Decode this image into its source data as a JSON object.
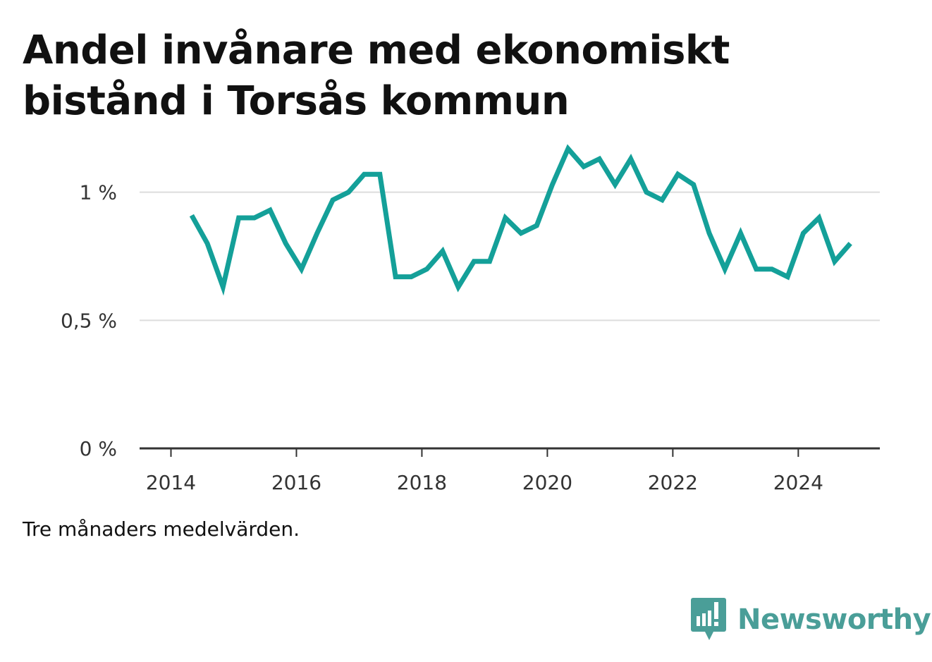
{
  "title": "Andel invånare med ekonomiskt bistånd i Torsås kommun",
  "note": "Tre månaders medelvärden.",
  "brand": {
    "name": "Newsworthy",
    "icon": "newsworthy-logo-icon",
    "color": "#4a9e98"
  },
  "chart_data": {
    "type": "line",
    "line_color": "#14a099",
    "grid": true,
    "xlim": [
      2013.5,
      2025.3
    ],
    "ylim": [
      0,
      1.2
    ],
    "x_ticks": [
      2014,
      2016,
      2018,
      2020,
      2022,
      2024
    ],
    "x_tick_labels": [
      "2014",
      "2016",
      "2018",
      "2020",
      "2022",
      "2024"
    ],
    "y_ticks": [
      0,
      0.5,
      1
    ],
    "y_tick_labels": [
      "0 %",
      "0,5 %",
      "1 %"
    ],
    "series": [
      {
        "x": [
          2014.33,
          2014.58,
          2014.83,
          2015.08,
          2015.33,
          2015.58,
          2015.83,
          2016.08,
          2016.33,
          2016.58,
          2016.83,
          2017.08,
          2017.33,
          2017.58,
          2017.83,
          2018.08,
          2018.33,
          2018.58,
          2018.83,
          2019.08,
          2019.33,
          2019.58,
          2019.83,
          2020.08,
          2020.33,
          2020.58,
          2020.83,
          2021.08,
          2021.33,
          2021.58,
          2021.83,
          2022.08,
          2022.33,
          2022.58,
          2022.83,
          2023.08,
          2023.33,
          2023.58,
          2023.83,
          2024.08,
          2024.33,
          2024.58,
          2024.83
        ],
        "values": [
          0.91,
          0.8,
          0.63,
          0.9,
          0.9,
          0.93,
          0.8,
          0.7,
          0.84,
          0.97,
          1.0,
          1.07,
          1.07,
          0.67,
          0.67,
          0.7,
          0.77,
          0.63,
          0.73,
          0.73,
          0.9,
          0.84,
          0.87,
          1.03,
          1.17,
          1.1,
          1.13,
          1.03,
          1.13,
          1.0,
          0.97,
          1.07,
          1.03,
          0.84,
          0.7,
          0.84,
          0.7,
          0.7,
          0.67,
          0.84,
          0.9,
          0.73,
          0.8
        ]
      }
    ]
  }
}
